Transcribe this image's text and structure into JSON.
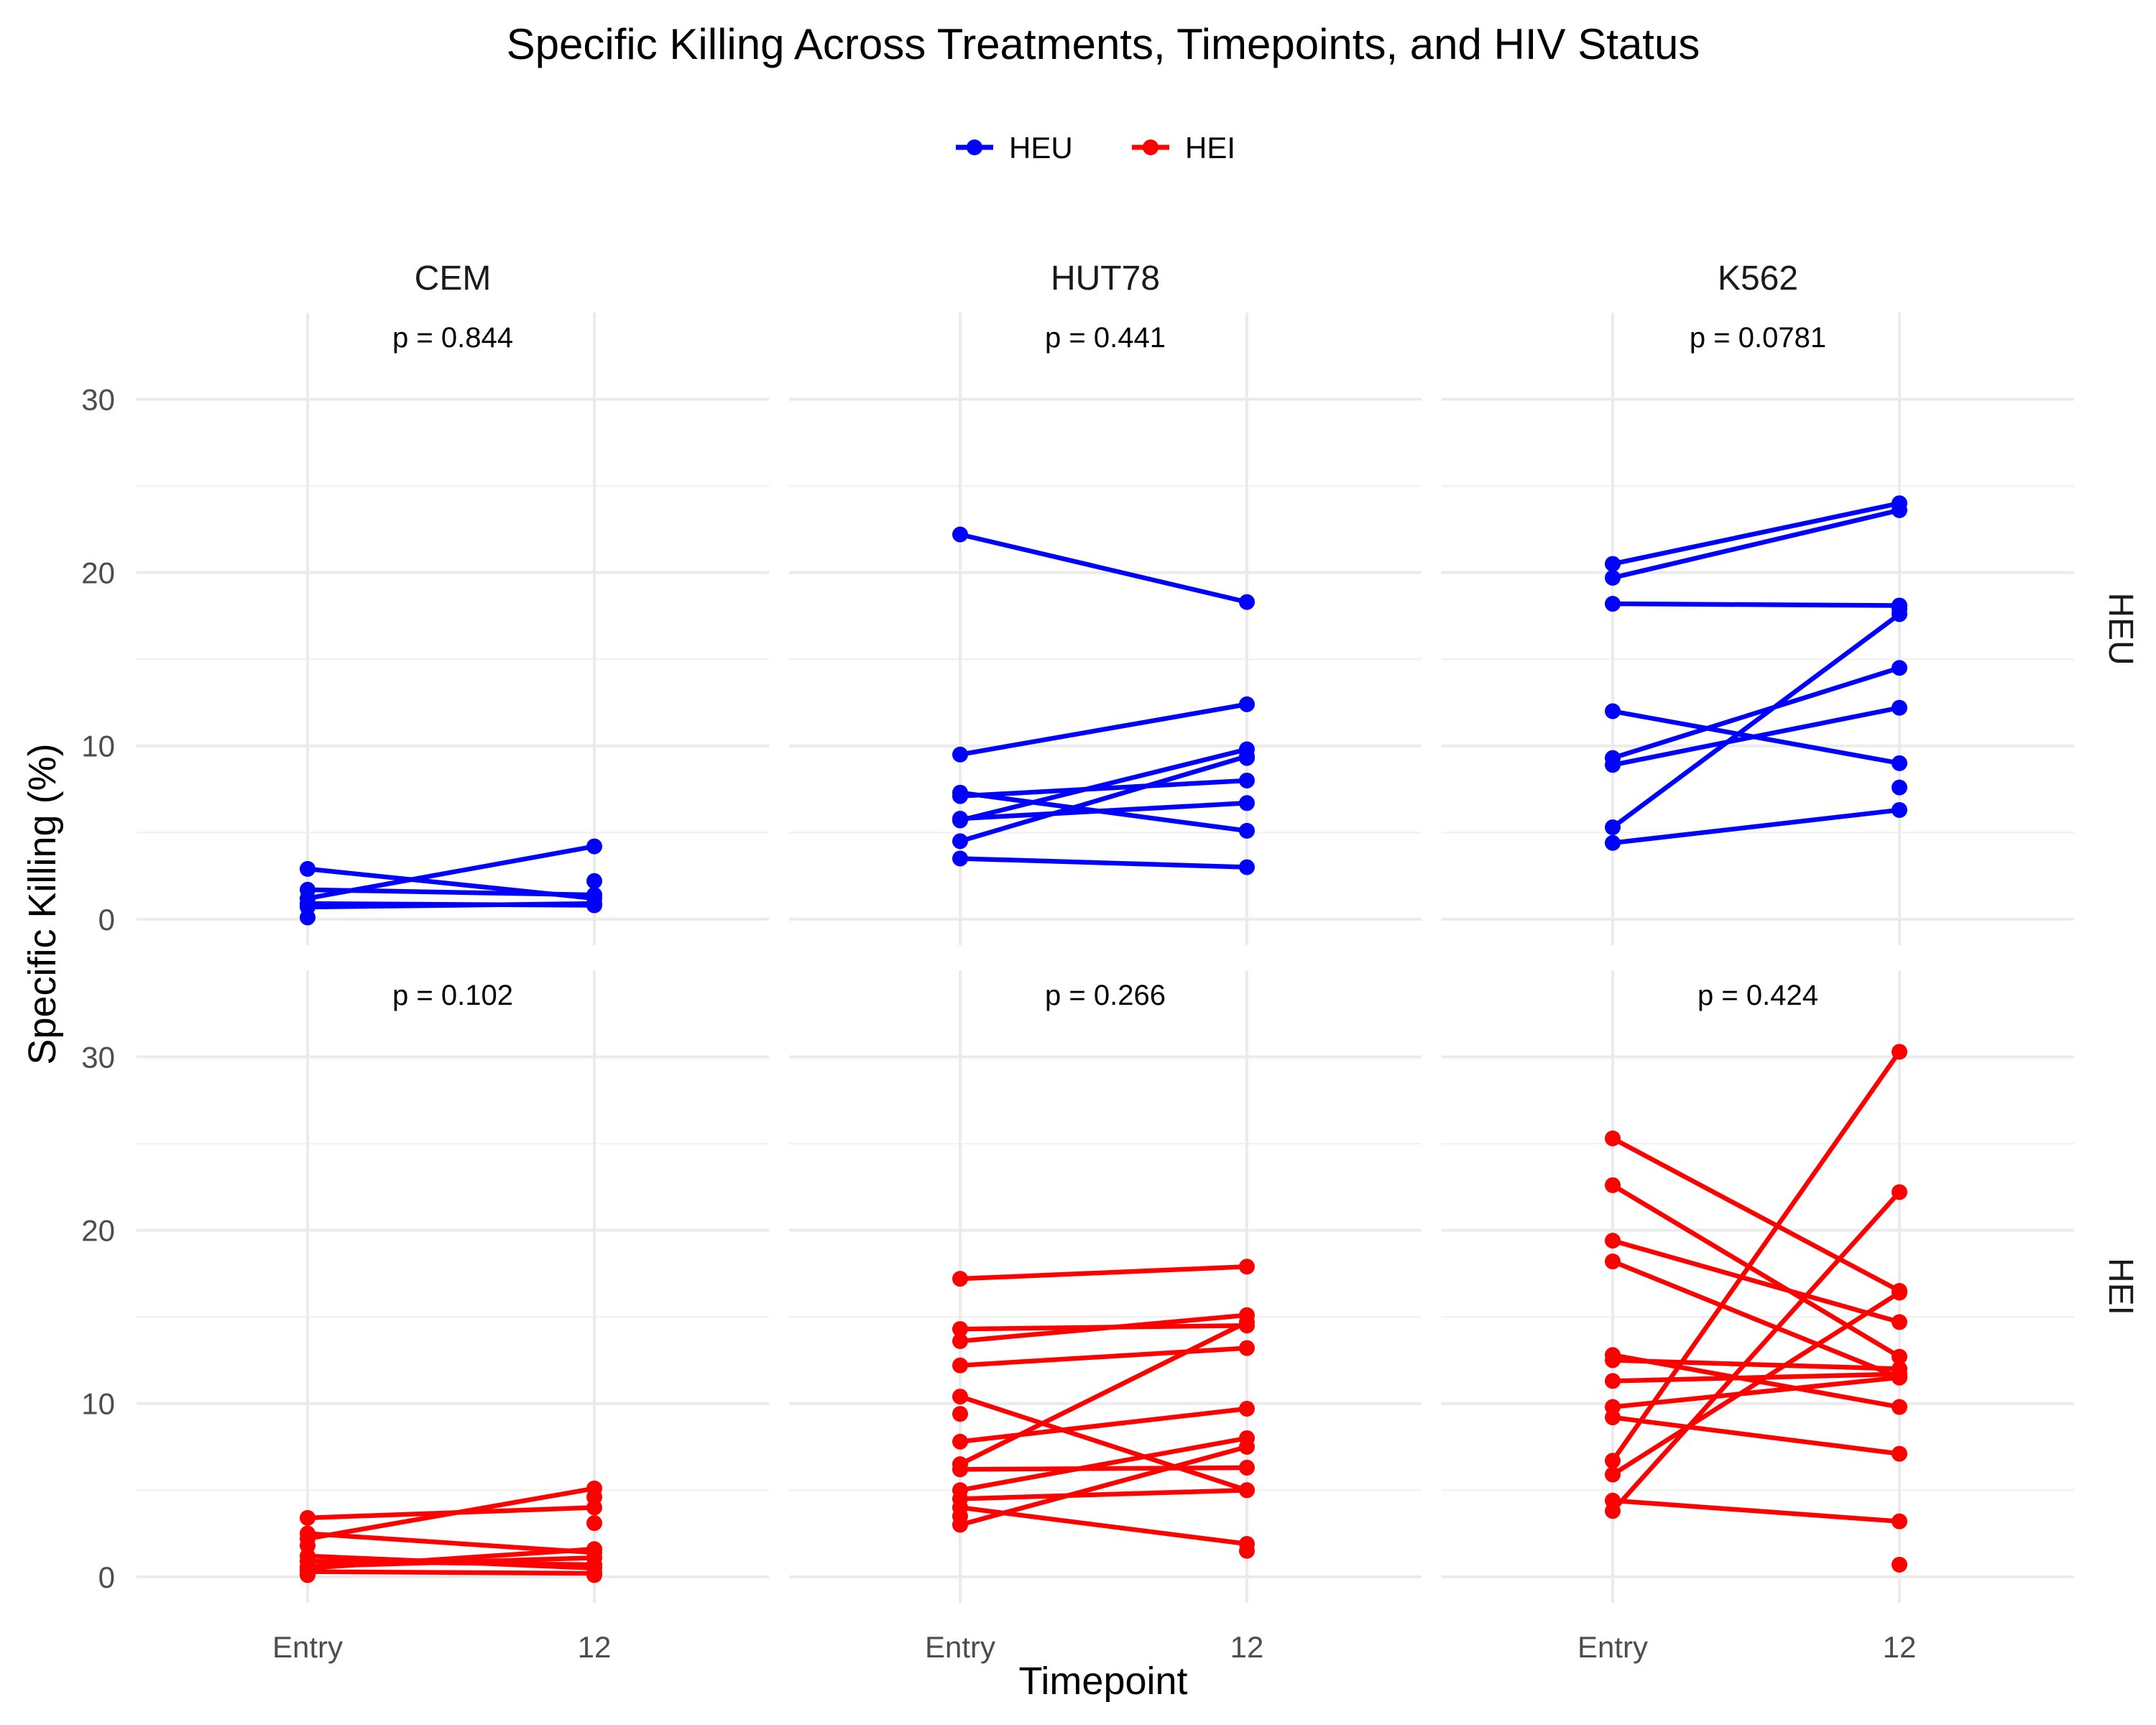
{
  "chart_data": {
    "type": "line",
    "title": "Specific Killing Across Treatments, Timepoints, and HIV Status",
    "xlabel": "Timepoint",
    "ylabel": "Specific Killing (%)",
    "x_categories": [
      "Entry",
      "12"
    ],
    "y_ticks": [
      0,
      10,
      20,
      30
    ],
    "ylim": [
      -1.5,
      35
    ],
    "grid": true,
    "legend_position": "top",
    "legend": [
      {
        "name": "HEU",
        "color": "#0000ff"
      },
      {
        "name": "HEI",
        "color": "#ff0000"
      }
    ],
    "columns": [
      "CEM",
      "HUT78",
      "K562"
    ],
    "rows": [
      "HEU",
      "HEI"
    ],
    "panels": [
      {
        "column": "CEM",
        "row": "HEU",
        "p_label": "p = 0.844",
        "pairs": [
          [
            2.9,
            1.2
          ],
          [
            1.7,
            1.4
          ],
          [
            1.2,
            4.2
          ],
          [
            0.7,
            0.9
          ],
          [
            0.9,
            0.8
          ]
        ],
        "singles": [
          {
            "x": "Entry",
            "y": 0.1
          },
          {
            "x": "12",
            "y": 2.2
          }
        ]
      },
      {
        "column": "HUT78",
        "row": "HEU",
        "p_label": "p = 0.441",
        "pairs": [
          [
            22.2,
            18.3
          ],
          [
            9.5,
            12.4
          ],
          [
            7.3,
            5.1
          ],
          [
            7.1,
            8.0
          ],
          [
            5.7,
            9.8
          ],
          [
            5.8,
            6.7
          ],
          [
            4.5,
            9.4
          ],
          [
            3.5,
            3.0
          ]
        ],
        "singles": [
          {
            "x": "12",
            "y": 9.3
          }
        ]
      },
      {
        "column": "K562",
        "row": "HEU",
        "p_label": "p = 0.0781",
        "pairs": [
          [
            20.5,
            24.0
          ],
          [
            19.7,
            23.6
          ],
          [
            18.2,
            18.1
          ],
          [
            12.0,
            9.0
          ],
          [
            9.3,
            14.5
          ],
          [
            8.9,
            12.2
          ],
          [
            5.3,
            17.6
          ],
          [
            4.4,
            6.3
          ]
        ],
        "singles": [
          {
            "x": "12",
            "y": 17.9
          },
          {
            "x": "12",
            "y": 7.6
          }
        ]
      },
      {
        "column": "CEM",
        "row": "HEI",
        "p_label": "p = 0.102",
        "pairs": [
          [
            3.4,
            4.0
          ],
          [
            2.5,
            1.4
          ],
          [
            2.2,
            5.1
          ],
          [
            1.2,
            0.5
          ],
          [
            0.9,
            0.7
          ],
          [
            0.5,
            1.6
          ],
          [
            0.3,
            0.2
          ],
          [
            0.6,
            1.1
          ]
        ],
        "singles": [
          {
            "x": "Entry",
            "y": 1.8
          },
          {
            "x": "Entry",
            "y": 0.1
          },
          {
            "x": "12",
            "y": 4.6
          },
          {
            "x": "12",
            "y": 3.1
          },
          {
            "x": "12",
            "y": 0.1
          }
        ]
      },
      {
        "column": "HUT78",
        "row": "HEI",
        "p_label": "p = 0.266",
        "pairs": [
          [
            17.2,
            17.9
          ],
          [
            14.3,
            14.5
          ],
          [
            13.6,
            15.1
          ],
          [
            12.2,
            13.2
          ],
          [
            10.4,
            5.0
          ],
          [
            7.8,
            9.7
          ],
          [
            6.5,
            14.7
          ],
          [
            6.2,
            6.3
          ],
          [
            5.0,
            8.0
          ],
          [
            4.5,
            5.0
          ],
          [
            3.0,
            7.5
          ],
          [
            4.0,
            1.9
          ]
        ],
        "singles": [
          {
            "x": "Entry",
            "y": 9.4
          },
          {
            "x": "Entry",
            "y": 3.5
          },
          {
            "x": "12",
            "y": 1.5
          }
        ]
      },
      {
        "column": "K562",
        "row": "HEI",
        "p_label": "p = 0.424",
        "pairs": [
          [
            25.3,
            16.5
          ],
          [
            22.6,
            12.7
          ],
          [
            19.4,
            14.7
          ],
          [
            18.2,
            11.5
          ],
          [
            12.8,
            9.8
          ],
          [
            12.5,
            12.0
          ],
          [
            11.3,
            11.7
          ],
          [
            9.8,
            11.5
          ],
          [
            9.2,
            7.1
          ],
          [
            6.7,
            30.3
          ],
          [
            5.9,
            16.4
          ],
          [
            4.4,
            3.2
          ],
          [
            3.8,
            22.2
          ]
        ],
        "singles": [
          {
            "x": "12",
            "y": 0.7
          }
        ]
      }
    ]
  }
}
